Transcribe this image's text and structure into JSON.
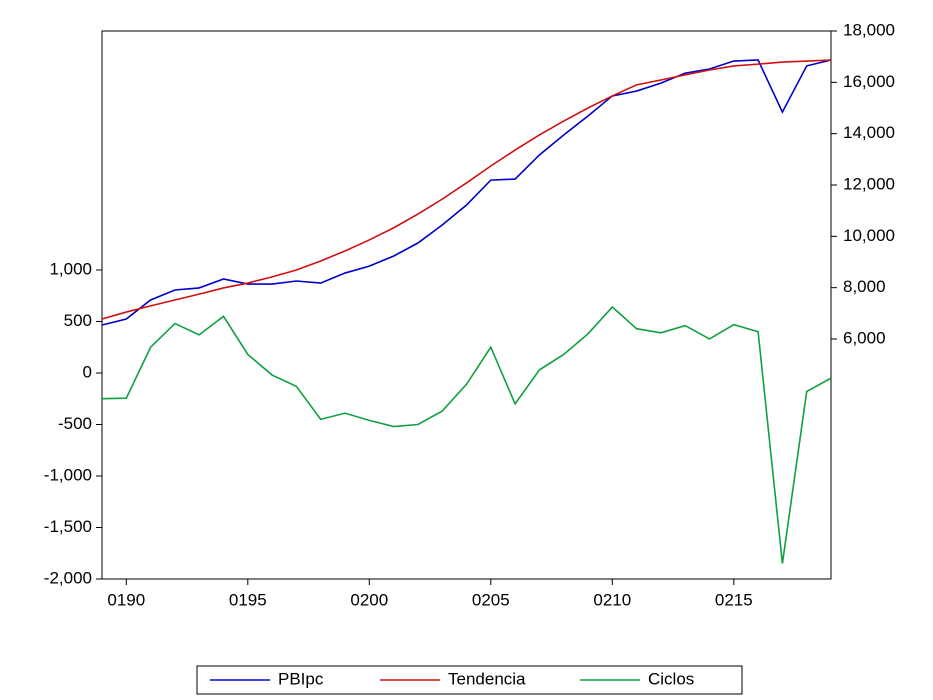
{
  "chart_data": {
    "type": "line",
    "x": [
      1989,
      1990,
      1991,
      1992,
      1993,
      1994,
      1995,
      1996,
      1997,
      1998,
      1999,
      2000,
      2001,
      2002,
      2003,
      2004,
      2005,
      2006,
      2007,
      2008,
      2009,
      2010,
      2011,
      2012,
      2013,
      2014,
      2015,
      2016,
      2017,
      2018,
      2019
    ],
    "xlim": [
      1989,
      2019
    ],
    "xticks": [
      {
        "value": 1990,
        "label": "0190"
      },
      {
        "value": 1995,
        "label": "0195"
      },
      {
        "value": 2000,
        "label": "0200"
      },
      {
        "value": 2005,
        "label": "0205"
      },
      {
        "value": 2010,
        "label": "0210"
      },
      {
        "value": 2015,
        "label": "0215"
      }
    ],
    "ylim": [
      -2000,
      3320
    ],
    "yticks": [
      {
        "value": -2000,
        "label": "-2,000"
      },
      {
        "value": -1500,
        "label": "-1,500"
      },
      {
        "value": -1000,
        "label": "-1,000"
      },
      -500,
      0,
      500,
      {
        "value": 1000,
        "label": "1,000"
      }
    ],
    "y2lim": [
      -3350,
      18000
    ],
    "y2ticks": [
      {
        "value": 6000,
        "label": "6,000"
      },
      {
        "value": 8000,
        "label": "8,000"
      },
      {
        "value": 10000,
        "label": "10,000"
      },
      {
        "value": 12000,
        "label": "12,000"
      },
      {
        "value": 14000,
        "label": "14,000"
      },
      {
        "value": 16000,
        "label": "16,000"
      },
      {
        "value": 18000,
        "label": "18,000"
      }
    ],
    "legend": "bottom",
    "series": [
      {
        "name": "PBIpc",
        "color": "#0000c8",
        "axis": "y2",
        "values": [
          6545,
          6780,
          7520,
          7910,
          7990,
          8340,
          8140,
          8140,
          8260,
          8180,
          8570,
          8840,
          9230,
          9740,
          10440,
          11220,
          12190,
          12230,
          13170,
          13950,
          14690,
          15470,
          15660,
          15970,
          16360,
          16520,
          16830,
          16870,
          14840,
          16640,
          16870
        ]
      },
      {
        "name": "Tendencia",
        "color": "#d01010",
        "axis": "y2",
        "values": [
          6780,
          7050,
          7290,
          7520,
          7750,
          7990,
          8180,
          8420,
          8690,
          9040,
          9430,
          9860,
          10330,
          10870,
          11450,
          12080,
          12740,
          13360,
          13950,
          14490,
          15000,
          15470,
          15900,
          16090,
          16290,
          16480,
          16640,
          16710,
          16790,
          16830,
          16870
        ]
      },
      {
        "name": "Ciclos",
        "color": "#10a040",
        "values": [
          -250,
          -245,
          250,
          480,
          370,
          550,
          180,
          -20,
          -130,
          -450,
          -390,
          -460,
          -520,
          -500,
          -370,
          -110,
          250,
          -300,
          30,
          180,
          380,
          640,
          430,
          390,
          460,
          330,
          470,
          400,
          -1850,
          -180,
          -50
        ]
      }
    ]
  }
}
